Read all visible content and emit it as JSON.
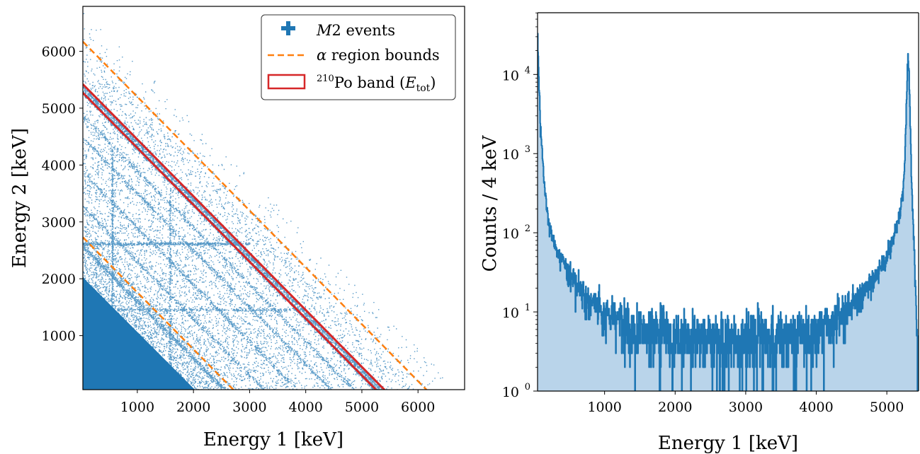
{
  "chart_data": [
    {
      "type": "scatter",
      "xlabel": "Energy 1 [keV]",
      "ylabel": "Energy 2 [keV]",
      "xlim": [
        30,
        6830
      ],
      "ylim": [
        50,
        6790
      ],
      "xticks": [
        1000,
        2000,
        3000,
        4000,
        5000,
        6000
      ],
      "yticks": [
        1000,
        2000,
        3000,
        4000,
        5000,
        6000
      ],
      "x_tick_labels": [
        "1000",
        "2000",
        "3000",
        "4000",
        "5000",
        "6000"
      ],
      "y_tick_labels": [
        "1000",
        "2000",
        "3000",
        "4000",
        "5000",
        "6000"
      ],
      "legend_position": "top-right",
      "series": [
        {
          "name": "M2 events",
          "kind": "points",
          "color": "#1f77b4",
          "lines_sum_kev": [
            5300,
            5400,
            4900,
            4500,
            3900,
            3300,
            2600,
            2000,
            6200
          ],
          "dense_region_max_sum_kev": 2700
        },
        {
          "name": "α region bounds",
          "kind": "dashed-lines",
          "color": "#ff7f0e",
          "lines": [
            {
              "x1": 30,
              "y1": 6170,
              "x2": 6200,
              "y2": 0
            },
            {
              "x1": 30,
              "y1": 2730,
              "x2": 2760,
              "y2": 0
            }
          ]
        },
        {
          "name": "210Po band (Etot)",
          "kind": "band",
          "color": "#d62728",
          "lines": [
            {
              "x1": 30,
              "y1": 5420,
              "x2": 5450,
              "y2": 0
            },
            {
              "x1": 30,
              "y1": 5270,
              "x2": 5300,
              "y2": 0
            }
          ]
        }
      ],
      "legend": [
        {
          "label_prefix": "",
          "label_main": "M",
          "label_suffix": "2 events"
        },
        {
          "label_prefix": "α",
          "label_main": " region bounds",
          "label_suffix": ""
        },
        {
          "label_sup": "210",
          "label_main": "Po band (",
          "label_var": "E",
          "label_sub": "tot",
          "label_close": ")"
        }
      ]
    },
    {
      "type": "line",
      "xlabel": "Energy 1 [keV]",
      "ylabel": "Counts / 4 keV",
      "xlim": [
        50,
        5450
      ],
      "ylim_log10": [
        0,
        4.78
      ],
      "yscale": "log",
      "xticks": [
        1000,
        2000,
        3000,
        4000,
        5000
      ],
      "x_tick_labels": [
        "1000",
        "2000",
        "3000",
        "4000",
        "5000"
      ],
      "yticks_exp": [
        0,
        1,
        2,
        3,
        4
      ],
      "y_tick_base": "10",
      "bin_width_kev": 4,
      "color": "#1f77b4",
      "fill_color": "#b9d4ea",
      "series": [
        {
          "name": "",
          "x": [
            50,
            70,
            100,
            150,
            200,
            300,
            400,
            500,
            600,
            700,
            800,
            1000,
            1200,
            1500,
            2000,
            2500,
            3000,
            3500,
            4000,
            4300,
            4600,
            4800,
            5000,
            5100,
            5200,
            5250,
            5280,
            5300,
            5320,
            5350,
            5400,
            5430,
            5450
          ],
          "y": [
            30000,
            8000,
            1600,
            400,
            150,
            70,
            45,
            30,
            22,
            17,
            14,
            10,
            8,
            6,
            5,
            4.5,
            4.5,
            5,
            6,
            9,
            14,
            25,
            50,
            90,
            200,
            600,
            5000,
            19000,
            8000,
            500,
            30,
            5,
            1
          ]
        }
      ]
    }
  ]
}
